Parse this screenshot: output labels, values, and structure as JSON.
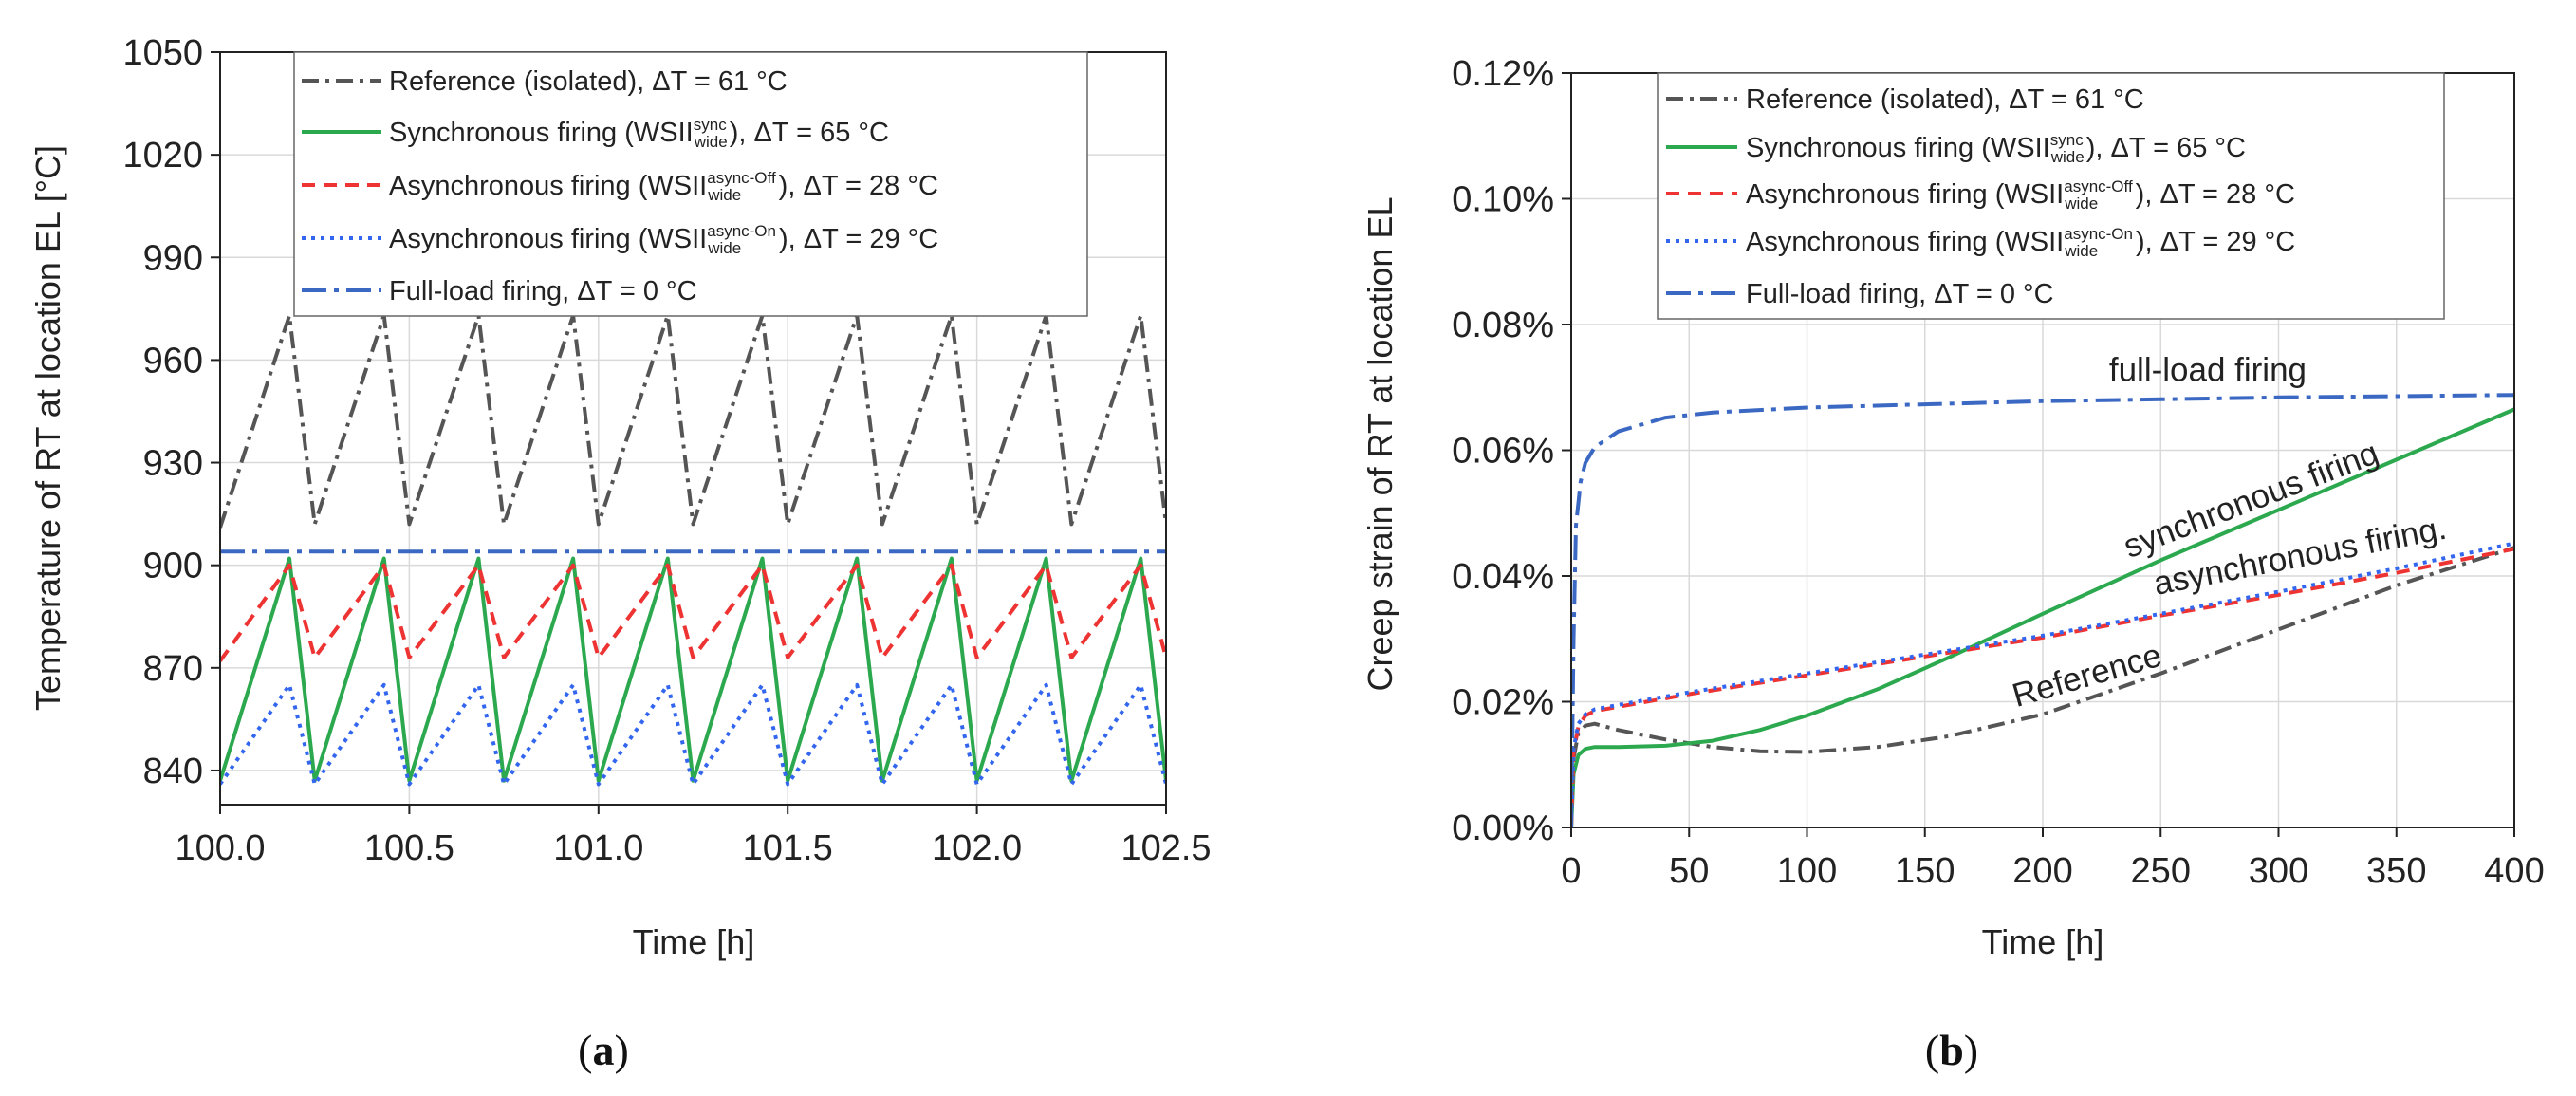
{
  "chart_data": [
    {
      "id": "a",
      "type": "line",
      "caption": "a",
      "xlabel": "Time [h]",
      "ylabel": "Temperature of RT at location EL [°C]",
      "xlim": [
        100.0,
        102.5
      ],
      "ylim": [
        830,
        1050
      ],
      "xticks": [
        100.0,
        100.5,
        101.0,
        101.5,
        102.0,
        102.5
      ],
      "xtick_labels": [
        "100.0",
        "100.5",
        "101.0",
        "101.5",
        "102.0",
        "102.5"
      ],
      "yticks": [
        840,
        870,
        900,
        930,
        960,
        990,
        1020,
        1050
      ],
      "ytick_labels": [
        "840",
        "870",
        "900",
        "930",
        "960",
        "990",
        "1020",
        "1050"
      ],
      "grid": true,
      "legend_location": "top",
      "series": [
        {
          "key": "ref",
          "name_main": "Reference (isolated), ΔT = 61 °C",
          "name_tail": "",
          "sup": "",
          "sub": "",
          "color": "#555555",
          "dash": "dashdot",
          "x": [
            100.0,
            100.183,
            100.25,
            100.433,
            100.5,
            100.683,
            100.75,
            100.933,
            101.0,
            101.183,
            101.25,
            101.433,
            101.5,
            101.683,
            101.75,
            101.933,
            102.0,
            102.183,
            102.25,
            102.433,
            102.5
          ],
          "y": [
            911,
            973,
            912,
            973,
            912,
            973,
            912,
            973,
            912,
            973,
            912,
            973,
            912,
            973,
            912,
            973,
            912,
            973,
            912,
            973,
            912
          ]
        },
        {
          "key": "sync",
          "name_main": "Synchronous firing   (WSII",
          "name_tail": "), ΔT = 65 °C",
          "sup": "sync",
          "sub": "wide",
          "color": "#2ca94f",
          "dash": "solid",
          "x": [
            100.0,
            100.183,
            100.25,
            100.433,
            100.5,
            100.683,
            100.75,
            100.933,
            101.0,
            101.183,
            101.25,
            101.433,
            101.5,
            101.683,
            101.75,
            101.933,
            102.0,
            102.183,
            102.25,
            102.433,
            102.5
          ],
          "y": [
            837,
            902,
            837,
            902,
            837,
            902,
            837,
            902,
            837,
            902,
            837,
            902,
            837,
            902,
            837,
            902,
            837,
            902,
            837,
            902,
            837
          ]
        },
        {
          "key": "async_off",
          "name_main": "Asynchronous firing (WSII",
          "name_tail": "), ΔT = 28 °C",
          "sup": "async-Off",
          "sub": "wide",
          "color": "#ee3333",
          "dash": "dash",
          "x": [
            100.0,
            100.183,
            100.25,
            100.433,
            100.5,
            100.683,
            100.75,
            100.933,
            101.0,
            101.183,
            101.25,
            101.433,
            101.5,
            101.683,
            101.75,
            101.933,
            102.0,
            102.183,
            102.25,
            102.433,
            102.5
          ],
          "y": [
            872,
            900,
            873,
            900,
            873,
            900,
            873,
            900,
            873,
            900,
            873,
            900,
            873,
            900,
            873,
            900,
            873,
            900,
            873,
            900,
            873
          ]
        },
        {
          "key": "async_on",
          "name_main": "Asynchronous firing (WSII",
          "name_tail": "), ΔT = 29 °C",
          "sup": "async-On",
          "sub": "wide",
          "color": "#3366ee",
          "dash": "dot",
          "x": [
            100.0,
            100.183,
            100.25,
            100.433,
            100.5,
            100.683,
            100.75,
            100.933,
            101.0,
            101.183,
            101.25,
            101.433,
            101.5,
            101.683,
            101.75,
            101.933,
            102.0,
            102.183,
            102.25,
            102.433,
            102.5
          ],
          "y": [
            836,
            865,
            836,
            865,
            836,
            865,
            836,
            865,
            836,
            865,
            836,
            865,
            836,
            865,
            836,
            865,
            836,
            865,
            836,
            865,
            836
          ]
        },
        {
          "key": "full",
          "name_main": "Full-load firing, ΔT = 0 °C",
          "name_tail": "",
          "sup": "",
          "sub": "",
          "color": "#3a68c2",
          "dash": "longdashdot",
          "x": [
            100.0,
            102.5
          ],
          "y": [
            904,
            904
          ]
        }
      ]
    },
    {
      "id": "b",
      "type": "line",
      "caption": "b",
      "xlabel": "Time [h]",
      "ylabel": "Creep strain of RT at location EL",
      "xlim": [
        0,
        400
      ],
      "ylim": [
        0.0,
        0.12
      ],
      "xticks": [
        0,
        50,
        100,
        150,
        200,
        250,
        300,
        350,
        400
      ],
      "xtick_labels": [
        "0",
        "50",
        "100",
        "150",
        "200",
        "250",
        "300",
        "350",
        "400"
      ],
      "yticks": [
        0.0,
        0.02,
        0.04,
        0.06,
        0.08,
        0.1,
        0.12
      ],
      "ytick_labels": [
        "0.00%",
        "0.02%",
        "0.04%",
        "0.06%",
        "0.08%",
        "0.10%",
        "0.12%"
      ],
      "grid": true,
      "legend_location": "top",
      "annotations": [
        {
          "text": "full-load firing",
          "x": 270,
          "y": 0.071,
          "angle": 0
        },
        {
          "text": "synchronous firing",
          "x": 290,
          "y": 0.0505,
          "angle": -21
        },
        {
          "text": "asynchronous firing.",
          "x": 310,
          "y": 0.0415,
          "angle": -11
        },
        {
          "text": "Reference",
          "x": 220,
          "y": 0.0225,
          "angle": -16
        }
      ],
      "series": [
        {
          "key": "ref",
          "name_main": "Reference (isolated), ΔT = 61 °C",
          "name_tail": "",
          "sup": "",
          "sub": "",
          "color": "#555555",
          "dash": "dashdot",
          "x": [
            0,
            1,
            3,
            6,
            10,
            20,
            40,
            60,
            80,
            100,
            130,
            160,
            200,
            250,
            300,
            350,
            400
          ],
          "y": [
            0.0,
            0.011,
            0.015,
            0.0162,
            0.0165,
            0.0155,
            0.014,
            0.0128,
            0.0121,
            0.012,
            0.0128,
            0.0145,
            0.018,
            0.0245,
            0.0315,
            0.0385,
            0.0445
          ]
        },
        {
          "key": "sync",
          "name_main": "Synchronous firing   (WSII",
          "name_tail": "), ΔT = 65 °C",
          "sup": "sync",
          "sub": "wide",
          "color": "#2ca94f",
          "dash": "solid",
          "x": [
            0,
            1,
            3,
            6,
            10,
            20,
            40,
            60,
            80,
            100,
            130,
            160,
            200,
            250,
            300,
            350,
            400
          ],
          "y": [
            0.0,
            0.0085,
            0.0115,
            0.0125,
            0.0128,
            0.0128,
            0.013,
            0.0138,
            0.0155,
            0.0178,
            0.022,
            0.027,
            0.034,
            0.0425,
            0.0505,
            0.0585,
            0.0665
          ]
        },
        {
          "key": "async_off",
          "name_main": "Asynchronous firing (WSII",
          "name_tail": "), ΔT = 28 °C",
          "sup": "async-Off",
          "sub": "wide",
          "color": "#ee3333",
          "dash": "dash",
          "x": [
            0,
            1,
            3,
            6,
            10,
            20,
            50,
            100,
            150,
            200,
            250,
            300,
            350,
            400
          ],
          "y": [
            0.0,
            0.012,
            0.016,
            0.0178,
            0.0185,
            0.0192,
            0.0212,
            0.0242,
            0.0272,
            0.0302,
            0.0337,
            0.037,
            0.0405,
            0.0443
          ]
        },
        {
          "key": "async_on",
          "name_main": "Asynchronous firing (WSII",
          "name_tail": "), ΔT = 29 °C",
          "sup": "async-On",
          "sub": "wide",
          "color": "#3366ee",
          "dash": "dot",
          "x": [
            0,
            1,
            3,
            6,
            10,
            20,
            50,
            100,
            150,
            200,
            250,
            300,
            350,
            400
          ],
          "y": [
            0.0,
            0.0125,
            0.0165,
            0.018,
            0.0188,
            0.0195,
            0.0215,
            0.0245,
            0.0275,
            0.0305,
            0.034,
            0.0375,
            0.0412,
            0.0452
          ]
        },
        {
          "key": "full",
          "name_main": "Full-load firing, ΔT = 0 °C",
          "name_tail": "",
          "sup": "",
          "sub": "",
          "color": "#3a68c2",
          "dash": "longdashdot",
          "x": [
            0,
            1,
            2,
            4,
            6,
            10,
            20,
            40,
            60,
            100,
            150,
            200,
            250,
            300,
            350,
            400
          ],
          "y": [
            0.0,
            0.03,
            0.048,
            0.055,
            0.058,
            0.0605,
            0.063,
            0.0652,
            0.066,
            0.0668,
            0.0673,
            0.0678,
            0.0681,
            0.0684,
            0.0686,
            0.0688
          ]
        }
      ]
    }
  ]
}
